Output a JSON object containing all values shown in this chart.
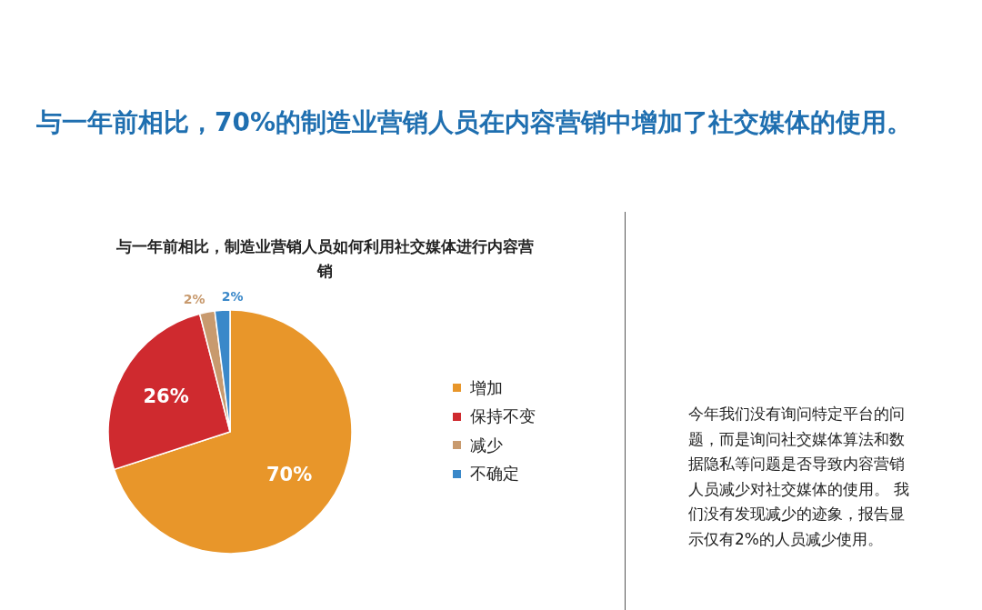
{
  "chart_data": {
    "type": "pie",
    "title": "与一年前相比，70%的制造业营销人员在内容营销中增加了社交媒体的使用。",
    "subtitle": "与一年前相比，制造业营销人员如何利用社交媒体进行内容营销",
    "categories": [
      "增加",
      "保持不变",
      "减少",
      "不确定"
    ],
    "values": [
      70,
      26,
      2,
      2
    ],
    "colors": [
      "#e8962a",
      "#cf2a2f",
      "#c89a6e",
      "#3a88c9"
    ],
    "value_labels": [
      "70%",
      "26%",
      "2%",
      "2%"
    ],
    "legend": "right",
    "annotations": [
      "今年我们没有询问特定平台的问题，而是询问社交媒体算法和数据隐私等问题是否导致内容营销人员减少对社交媒体的使用。 我们没有发现减少的迹象，报告显示仅有2%的人员减少使用。"
    ]
  }
}
